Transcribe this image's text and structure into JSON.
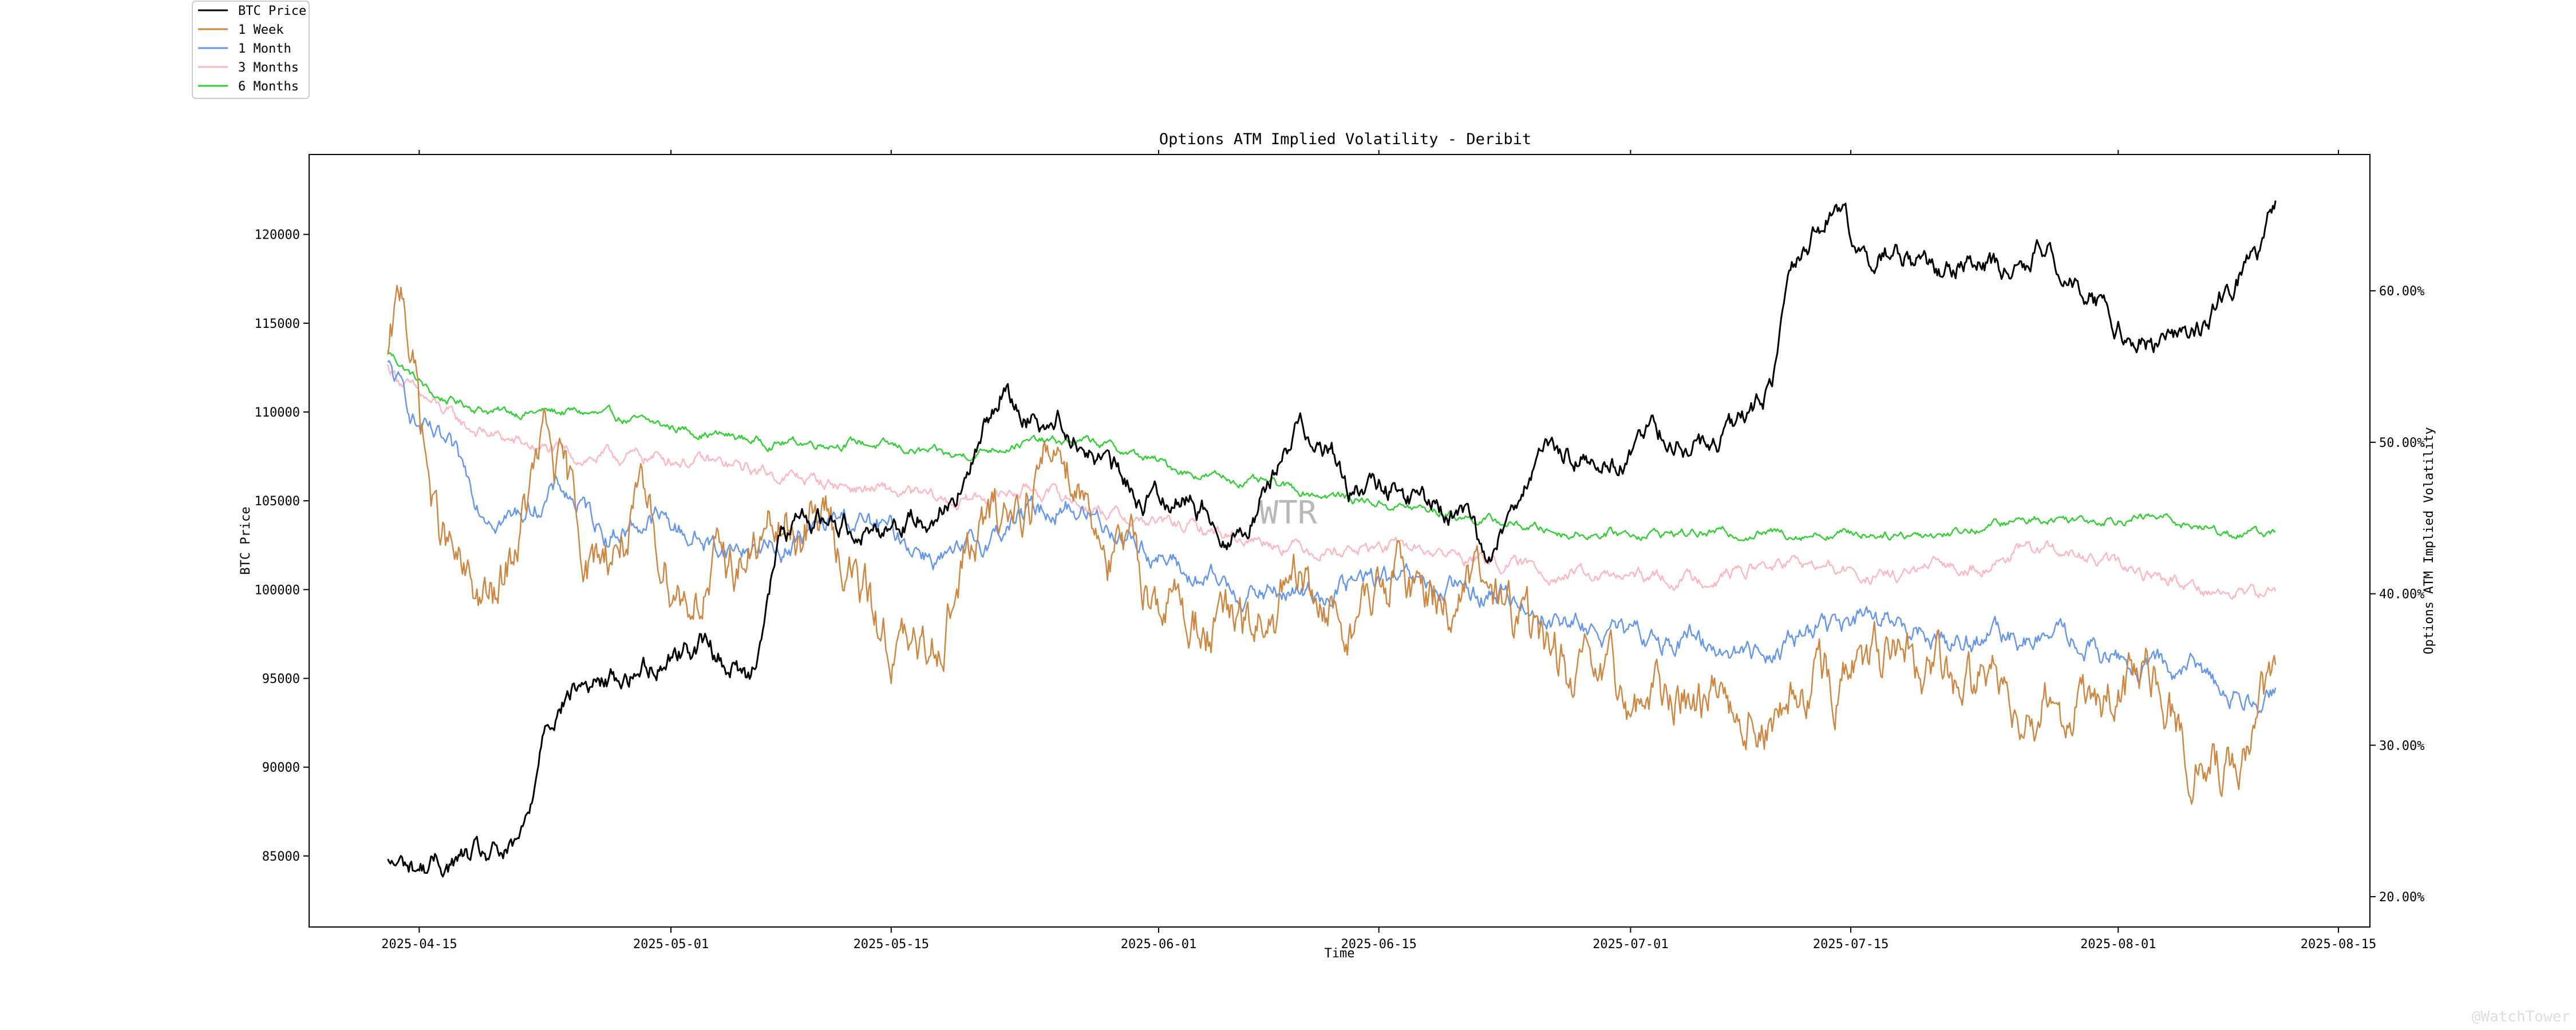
{
  "chart_data": {
    "type": "line",
    "title": "Options ATM Implied Volatility - Deribit",
    "xlabel": "Time",
    "ylabel_left": "BTC Price",
    "ylabel_right": "Options ATM Implied Volatility",
    "x_ticks": [
      "2025-04-15",
      "2025-05-01",
      "2025-05-15",
      "2025-06-01",
      "2025-06-15",
      "2025-07-01",
      "2025-07-15",
      "2025-08-01",
      "2025-08-15"
    ],
    "y_left_ticks": [
      "85000",
      "90000",
      "95000",
      "100000",
      "105000",
      "110000",
      "115000",
      "120000"
    ],
    "y_right_ticks": [
      "20.00%",
      "30.00%",
      "40.00%",
      "50.00%",
      "60.00%"
    ],
    "xlim": [
      "2025-04-08",
      "2025-08-17"
    ],
    "ylim_left": [
      81000,
      124500
    ],
    "ylim_right": [
      18,
      69
    ],
    "legend_placement": "top-left, outside plot",
    "grid": false,
    "watermark": "WTR",
    "footer_mark": "@WatchTower",
    "series": [
      {
        "name": "BTC Price",
        "axis": "left",
        "color": "#000000",
        "x": [
          "2025-04-13",
          "2025-04-15",
          "2025-04-18",
          "2025-04-21",
          "2025-04-22",
          "2025-04-23",
          "2025-04-25",
          "2025-04-28",
          "2025-05-01",
          "2025-05-03",
          "2025-05-06",
          "2025-05-08",
          "2025-05-10",
          "2025-05-14",
          "2025-05-18",
          "2025-05-20",
          "2025-05-22",
          "2025-05-23",
          "2025-05-26",
          "2025-05-28",
          "2025-05-31",
          "2025-06-02",
          "2025-06-04",
          "2025-06-06",
          "2025-06-08",
          "2025-06-10",
          "2025-06-12",
          "2025-06-13",
          "2025-06-16",
          "2025-06-19",
          "2025-06-21",
          "2025-06-22",
          "2025-06-24",
          "2025-06-26",
          "2025-06-28",
          "2025-06-30",
          "2025-07-02",
          "2025-07-04",
          "2025-07-06",
          "2025-07-08",
          "2025-07-10",
          "2025-07-11",
          "2025-07-14",
          "2025-07-16",
          "2025-07-18",
          "2025-07-20",
          "2025-07-23",
          "2025-07-25",
          "2025-07-27",
          "2025-07-29",
          "2025-07-31",
          "2025-08-02",
          "2025-08-04",
          "2025-08-06",
          "2025-08-08",
          "2025-08-10",
          "2025-08-11"
        ],
        "values": [
          84500,
          84300,
          84800,
          85000,
          87000,
          93000,
          94500,
          95000,
          96500,
          97000,
          95000,
          103000,
          104000,
          103500,
          104500,
          106500,
          111500,
          110000,
          109500,
          107500,
          105000,
          105500,
          104500,
          103000,
          106000,
          109500,
          108000,
          105500,
          105500,
          104500,
          103500,
          101500,
          106000,
          107500,
          107500,
          107000,
          109000,
          108500,
          108000,
          109000,
          111500,
          117500,
          121800,
          118500,
          119000,
          118000,
          118800,
          117500,
          119200,
          118000,
          115800,
          114500,
          113500,
          114500,
          116800,
          119000,
          121500
        ]
      },
      {
        "name": "1 Week",
        "axis": "right",
        "color": "#cd853f",
        "x": [
          "2025-04-13",
          "2025-04-14",
          "2025-04-16",
          "2025-04-18",
          "2025-04-20",
          "2025-04-23",
          "2025-04-26",
          "2025-04-29",
          "2025-05-02",
          "2025-05-05",
          "2025-05-08",
          "2025-05-11",
          "2025-05-14",
          "2025-05-17",
          "2025-05-20",
          "2025-05-23",
          "2025-05-26",
          "2025-05-29",
          "2025-06-01",
          "2025-06-04",
          "2025-06-07",
          "2025-06-10",
          "2025-06-13",
          "2025-06-16",
          "2025-06-19",
          "2025-06-22",
          "2025-06-25",
          "2025-06-28",
          "2025-07-01",
          "2025-07-04",
          "2025-07-07",
          "2025-07-10",
          "2025-07-13",
          "2025-07-16",
          "2025-07-19",
          "2025-07-22",
          "2025-07-25",
          "2025-07-28",
          "2025-07-31",
          "2025-08-03",
          "2025-08-06",
          "2025-08-09",
          "2025-08-11"
        ],
        "values": [
          55,
          60,
          45,
          40,
          39,
          50,
          42,
          45,
          40,
          42,
          44,
          45,
          38,
          35,
          43,
          46,
          50,
          43,
          40,
          38,
          37,
          40,
          38,
          41,
          40,
          40,
          37,
          34,
          33,
          33,
          34,
          31,
          34,
          35,
          35,
          34,
          34,
          33,
          33,
          34,
          29,
          28,
          34
        ]
      },
      {
        "name": "1 Month",
        "axis": "right",
        "color": "#6495ed",
        "x": [
          "2025-04-13",
          "2025-04-15",
          "2025-04-17",
          "2025-04-19",
          "2025-04-21",
          "2025-04-24",
          "2025-04-27",
          "2025-04-30",
          "2025-05-04",
          "2025-05-08",
          "2025-05-12",
          "2025-05-15",
          "2025-05-19",
          "2025-05-23",
          "2025-05-26",
          "2025-05-30",
          "2025-06-03",
          "2025-06-07",
          "2025-06-11",
          "2025-06-15",
          "2025-06-19",
          "2025-06-23",
          "2025-06-27",
          "2025-07-01",
          "2025-07-05",
          "2025-07-09",
          "2025-07-13",
          "2025-07-17",
          "2025-07-21",
          "2025-07-25",
          "2025-07-29",
          "2025-08-02",
          "2025-08-06",
          "2025-08-09",
          "2025-08-11"
        ],
        "values": [
          55,
          51,
          49,
          46,
          45,
          47,
          44,
          45,
          43,
          43,
          45,
          44,
          42,
          45,
          46,
          44,
          41,
          40,
          40,
          41,
          40,
          40,
          38,
          37,
          37,
          36,
          38,
          38,
          37,
          37,
          37,
          35,
          35,
          33,
          34
        ]
      },
      {
        "name": "3 Months",
        "axis": "right",
        "color": "#ffb6c1",
        "x": [
          "2025-04-13",
          "2025-04-15",
          "2025-04-18",
          "2025-04-21",
          "2025-04-25",
          "2025-05-01",
          "2025-05-07",
          "2025-05-13",
          "2025-05-19",
          "2025-05-24",
          "2025-05-30",
          "2025-06-05",
          "2025-06-11",
          "2025-06-17",
          "2025-06-23",
          "2025-06-29",
          "2025-07-05",
          "2025-07-11",
          "2025-07-17",
          "2025-07-23",
          "2025-07-27",
          "2025-07-31",
          "2025-08-04",
          "2025-08-08",
          "2025-08-11"
        ],
        "values": [
          55,
          53,
          51,
          50,
          49,
          49,
          48,
          47,
          46,
          47,
          45,
          44,
          43,
          43,
          42,
          41,
          41,
          42,
          41,
          42,
          43,
          42,
          41,
          40,
          40
        ]
      },
      {
        "name": "6 Months",
        "axis": "right",
        "color": "#32cd32",
        "x": [
          "2025-04-13",
          "2025-04-16",
          "2025-04-20",
          "2025-04-25",
          "2025-05-01",
          "2025-05-07",
          "2025-05-13",
          "2025-05-19",
          "2025-05-23",
          "2025-05-28",
          "2025-06-03",
          "2025-06-09",
          "2025-06-15",
          "2025-06-21",
          "2025-06-27",
          "2025-07-03",
          "2025-07-09",
          "2025-07-15",
          "2025-07-21",
          "2025-07-27",
          "2025-07-31",
          "2025-08-04",
          "2025-08-08",
          "2025-08-11"
        ],
        "values": [
          56,
          53,
          52,
          52,
          51,
          50,
          50,
          49,
          50,
          50,
          48,
          47,
          46,
          45,
          44,
          44,
          44,
          44,
          44,
          45,
          45,
          45,
          44,
          44
        ]
      }
    ]
  }
}
